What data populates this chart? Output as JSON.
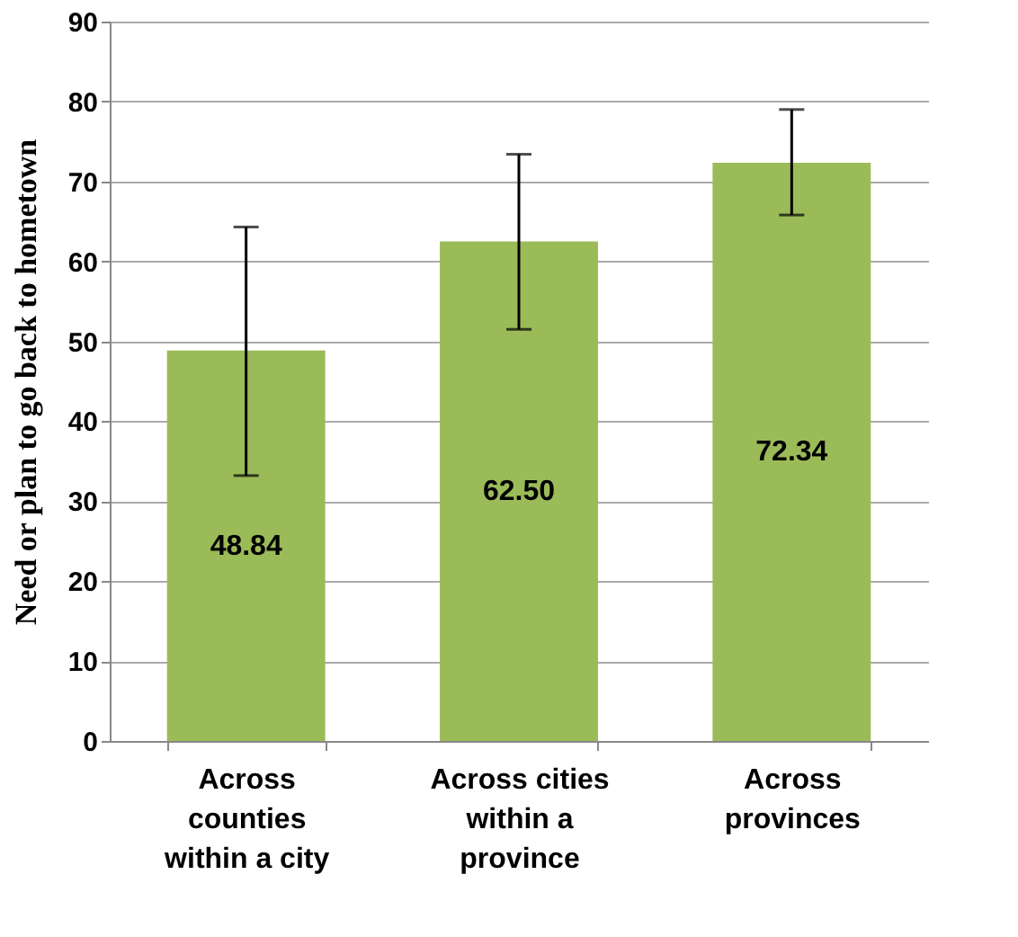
{
  "chart_data": {
    "type": "bar",
    "ylabel": "Need or plan to go back to hometown",
    "categories": [
      "Across counties within a city",
      "Across cities within a province",
      "Across provinces"
    ],
    "values": [
      48.84,
      62.5,
      72.34
    ],
    "value_labels": [
      "48.84",
      "62.50",
      "72.34"
    ],
    "errors": [
      [
        33.2,
        64.3
      ],
      [
        51.5,
        73.4
      ],
      [
        65.8,
        79.0
      ]
    ],
    "color": "#9bbb59",
    "ylim": [
      0,
      90
    ],
    "yticks": [
      0,
      10,
      20,
      30,
      40,
      50,
      60,
      70,
      80,
      90
    ],
    "grid": "y"
  }
}
